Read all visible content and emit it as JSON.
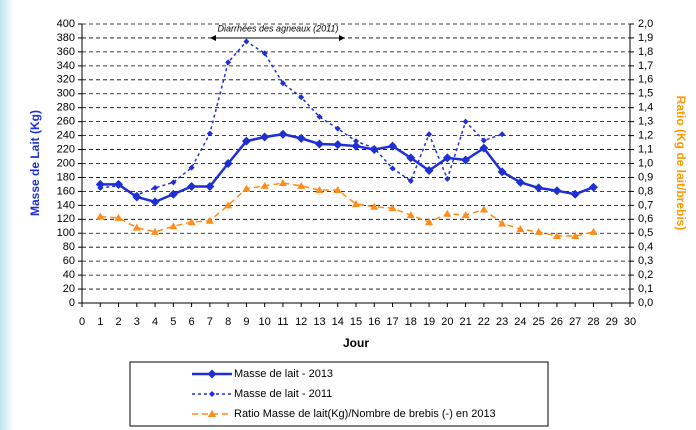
{
  "chart_data": {
    "type": "line",
    "annotation": "Diarrhées des agneaux (2011)",
    "xlabel": "Jour",
    "ylabel": "Masse de Lait (Kg)",
    "y2label": "Ratio (Kg de lait/brebis)",
    "x": [
      1,
      2,
      3,
      4,
      5,
      6,
      7,
      8,
      9,
      10,
      11,
      12,
      13,
      14,
      15,
      16,
      17,
      18,
      19,
      20,
      21,
      22,
      23,
      24,
      25,
      26,
      27,
      28
    ],
    "xlim": [
      0,
      30
    ],
    "xticks": [
      0,
      1,
      2,
      3,
      4,
      5,
      6,
      7,
      8,
      9,
      10,
      11,
      12,
      13,
      14,
      15,
      16,
      17,
      18,
      19,
      20,
      21,
      22,
      23,
      24,
      25,
      26,
      27,
      28,
      29,
      30
    ],
    "ylim": [
      0,
      400
    ],
    "yticks": [
      0,
      20,
      40,
      60,
      80,
      100,
      120,
      140,
      160,
      180,
      200,
      220,
      240,
      260,
      280,
      300,
      320,
      340,
      360,
      380,
      400
    ],
    "y2lim": [
      0,
      2
    ],
    "y2ticks": [
      {
        "value": 0,
        "label": "0,0"
      },
      {
        "value": 0.1,
        "label": "0,1"
      },
      {
        "value": 0.2,
        "label": "0,2"
      },
      {
        "value": 0.3,
        "label": "0,3"
      },
      {
        "value": 0.4,
        "label": "0,4"
      },
      {
        "value": 0.5,
        "label": "0,5"
      },
      {
        "value": 0.6,
        "label": "0,6"
      },
      {
        "value": 0.7,
        "label": "0,7"
      },
      {
        "value": 0.8,
        "label": "0,8"
      },
      {
        "value": 0.9,
        "label": "0,9"
      },
      {
        "value": 1,
        "label": "1,0"
      },
      {
        "value": 1.1,
        "label": "1,1"
      },
      {
        "value": 1.2,
        "label": "1,2"
      },
      {
        "value": 1.3,
        "label": "1,3"
      },
      {
        "value": 1.4,
        "label": "1,4"
      },
      {
        "value": 1.5,
        "label": "1,5"
      },
      {
        "value": 1.6,
        "label": "1,6"
      },
      {
        "value": 1.7,
        "label": "1,7"
      },
      {
        "value": 1.8,
        "label": "1,8"
      },
      {
        "value": 1.9,
        "label": "1,9"
      },
      {
        "value": 2,
        "label": "2,0"
      }
    ],
    "grid": true,
    "legend": "bottom",
    "series": [
      {
        "name": "Masse de lait - 2013",
        "color": "#1f2fd6",
        "dash": "solid",
        "marker": "diamond",
        "values": [
          170,
          170,
          152,
          145,
          156,
          167,
          167,
          200,
          232,
          238,
          242,
          236,
          228,
          227,
          225,
          220,
          225,
          208,
          190,
          208,
          205,
          222,
          188,
          173,
          165,
          161,
          156,
          166
        ]
      },
      {
        "name": "Masse de lait - 2011",
        "color": "#1f2fd6",
        "dash": "dashed",
        "marker": "small-diamond",
        "values": [
          165,
          168,
          155,
          165,
          173,
          194,
          243,
          345,
          375,
          358,
          315,
          295,
          267,
          250,
          232,
          222,
          193,
          175,
          242,
          178,
          260,
          233,
          242,
          null,
          null,
          null,
          null,
          null
        ]
      },
      {
        "name": "Ratio Masse de lait(Kg)/Nombre de brebis (-) en 2013",
        "color": "#ff8c1a",
        "dash": "dashed",
        "marker": "triangle",
        "axis": "y2",
        "values": [
          0.62,
          0.61,
          0.54,
          0.51,
          0.55,
          0.58,
          0.59,
          0.7,
          0.82,
          0.84,
          0.86,
          0.84,
          0.81,
          0.81,
          0.71,
          0.69,
          0.68,
          0.63,
          0.58,
          0.64,
          0.63,
          0.67,
          0.57,
          0.53,
          0.51,
          0.48,
          0.48,
          0.51
        ]
      }
    ]
  }
}
